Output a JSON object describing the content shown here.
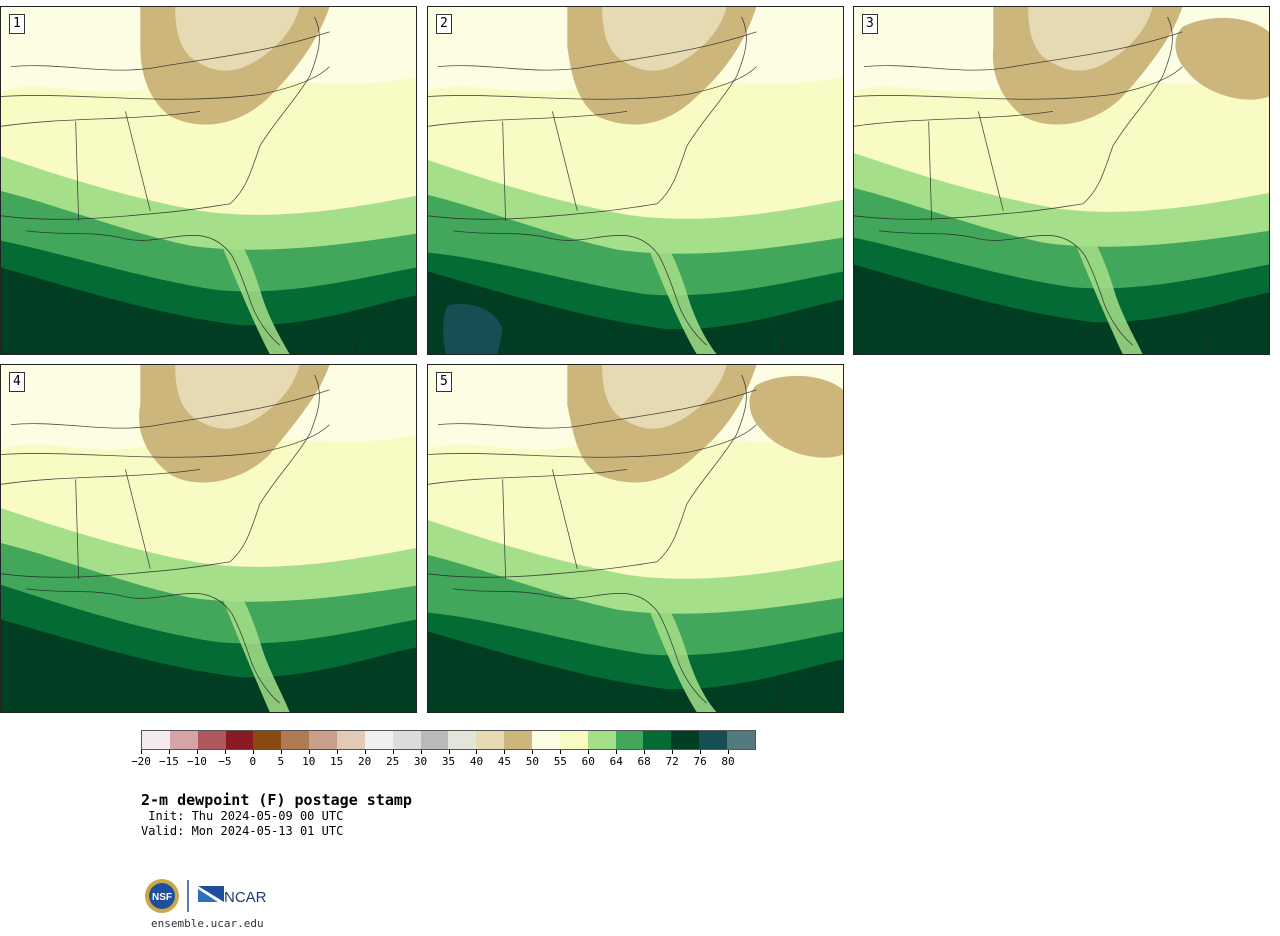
{
  "panels": [
    {
      "label": "1"
    },
    {
      "label": "2"
    },
    {
      "label": "3"
    },
    {
      "label": "4"
    },
    {
      "label": "5"
    }
  ],
  "colorbar": {
    "colors": [
      "#f4ecec",
      "#d6a3a6",
      "#b0575e",
      "#8c1a22",
      "#8a4a12",
      "#b07a55",
      "#c9a08a",
      "#e3c9b8",
      "#f0f0f0",
      "#dcdcdc",
      "#b9b9b9",
      "#e4e4d8",
      "#e6dab3",
      "#cdb67c",
      "#fdfde3",
      "#f8fbc4",
      "#a6df8a",
      "#42a75b",
      "#046b35",
      "#003d22",
      "#164e54",
      "#527a7e"
    ],
    "ticks": [
      "−20",
      "−15",
      "−10",
      "−5",
      "0",
      "5",
      "10",
      "15",
      "20",
      "25",
      "30",
      "35",
      "40",
      "45",
      "50",
      "55",
      "60",
      "64",
      "68",
      "72",
      "76",
      "80"
    ]
  },
  "title": "2-m dewpoint (F) postage stamp",
  "init": " Init: Thu 2024-05-09 00 UTC",
  "valid": "Valid: Mon 2024-05-13 01 UTC",
  "logos": {
    "nsf": "NSF",
    "ncar": "NCAR"
  },
  "url": "ensemble.ucar.edu"
}
